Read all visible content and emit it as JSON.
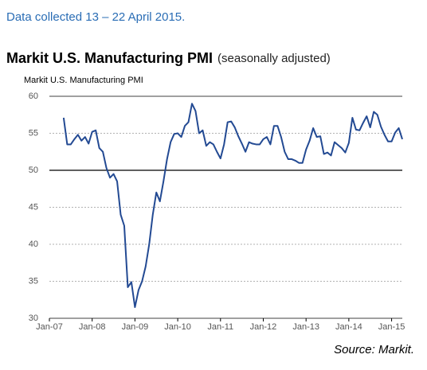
{
  "note_line": "Data collected 13 – 22 April 2015.",
  "chart_data": {
    "type": "line",
    "title": "Markit U.S. Manufacturing PMI",
    "subtitle": "(seasonally adjusted)",
    "y_label": "Markit U.S. Manufacturing PMI",
    "source": "Source: Markit.",
    "x": [
      "May-07",
      "Jun-07",
      "Jul-07",
      "Aug-07",
      "Sep-07",
      "Oct-07",
      "Nov-07",
      "Dec-07",
      "Jan-08",
      "Feb-08",
      "Mar-08",
      "Apr-08",
      "May-08",
      "Jun-08",
      "Jul-08",
      "Aug-08",
      "Sep-08",
      "Oct-08",
      "Nov-08",
      "Dec-08",
      "Jan-09",
      "Feb-09",
      "Mar-09",
      "Apr-09",
      "May-09",
      "Jun-09",
      "Jul-09",
      "Aug-09",
      "Sep-09",
      "Oct-09",
      "Nov-09",
      "Dec-09",
      "Jan-10",
      "Feb-10",
      "Mar-10",
      "Apr-10",
      "May-10",
      "Jun-10",
      "Jul-10",
      "Aug-10",
      "Sep-10",
      "Oct-10",
      "Nov-10",
      "Dec-10",
      "Jan-11",
      "Feb-11",
      "Mar-11",
      "Apr-11",
      "May-11",
      "Jun-11",
      "Jul-11",
      "Aug-11",
      "Sep-11",
      "Oct-11",
      "Nov-11",
      "Dec-11",
      "Jan-12",
      "Feb-12",
      "Mar-12",
      "Apr-12",
      "May-12",
      "Jun-12",
      "Jul-12",
      "Aug-12",
      "Sep-12",
      "Oct-12",
      "Nov-12",
      "Dec-12",
      "Jan-13",
      "Feb-13",
      "Mar-13",
      "Apr-13",
      "May-13",
      "Jun-13",
      "Jul-13",
      "Aug-13",
      "Sep-13",
      "Oct-13",
      "Nov-13",
      "Dec-13",
      "Jan-14",
      "Feb-14",
      "Mar-14",
      "Apr-14",
      "May-14",
      "Jun-14",
      "Jul-14",
      "Aug-14",
      "Sep-14",
      "Oct-14",
      "Nov-14",
      "Dec-14",
      "Jan-15",
      "Feb-15",
      "Mar-15",
      "Apr-15"
    ],
    "series": [
      {
        "name": "Markit U.S. Manufacturing PMI",
        "color": "#234a93",
        "values": [
          57.1,
          53.5,
          53.5,
          54.2,
          54.8,
          54.0,
          54.5,
          53.6,
          55.2,
          55.4,
          53.0,
          52.5,
          50.3,
          49.0,
          49.5,
          48.5,
          44.0,
          42.5,
          34.2,
          34.9,
          31.5,
          33.8,
          35.0,
          37.0,
          40.0,
          44.0,
          47.0,
          45.8,
          48.5,
          51.5,
          53.8,
          54.9,
          55.0,
          54.5,
          56.0,
          56.5,
          59.0,
          58.0,
          55.0,
          55.4,
          53.3,
          53.8,
          53.5,
          52.5,
          51.6,
          53.5,
          56.5,
          56.6,
          55.8,
          54.6,
          53.6,
          52.5,
          53.8,
          53.6,
          53.5,
          53.5,
          54.2,
          54.5,
          53.5,
          56.0,
          56.0,
          54.5,
          52.5,
          51.5,
          51.5,
          51.3,
          51.0,
          51.0,
          52.8,
          54.0,
          55.7,
          54.5,
          54.6,
          52.2,
          52.4,
          52.0,
          53.8,
          53.4,
          53.0,
          52.4,
          53.7,
          57.1,
          55.5,
          55.4,
          56.4,
          57.3,
          55.8,
          57.9,
          57.5,
          55.9,
          54.8,
          53.9,
          53.9,
          55.1,
          55.7,
          54.2
        ]
      }
    ],
    "xlim": [
      "Jan-07",
      "Apr-15"
    ],
    "xticks": [
      "Jan-07",
      "Jan-08",
      "Jan-09",
      "Jan-10",
      "Jan-11",
      "Jan-12",
      "Jan-13",
      "Jan-14",
      "Jan-15"
    ],
    "ylim": [
      30,
      60
    ],
    "yticks": [
      30,
      35,
      40,
      45,
      50,
      55,
      60
    ],
    "grid": true,
    "baseline": 50
  }
}
